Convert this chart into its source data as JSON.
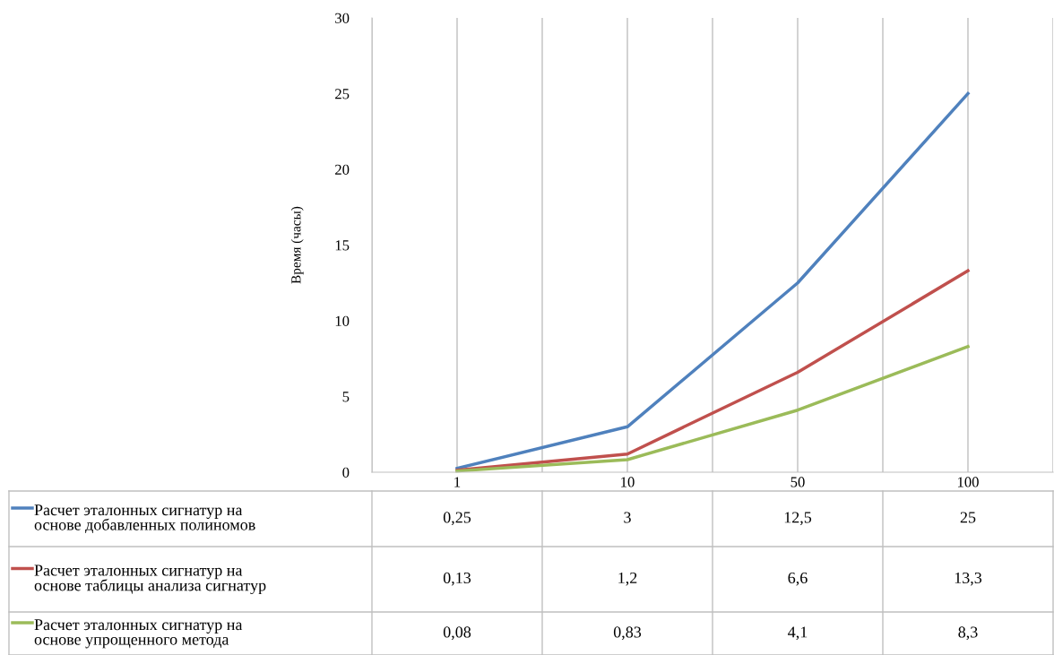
{
  "chart_data": {
    "type": "line",
    "ylabel": "Время (часы)",
    "categories": [
      "1",
      "10",
      "50",
      "100"
    ],
    "series": [
      {
        "name": "Расчет эталонных сигнатур на основе добавленных полиномов",
        "color": "#4f81bd",
        "values": [
          0.25,
          3,
          12.5,
          25
        ],
        "value_labels": [
          "0,25",
          "3",
          "12,5",
          "25"
        ]
      },
      {
        "name": "Расчет эталонных сигнатур на основе таблицы анализа сигнатур",
        "color": "#c0504d",
        "values": [
          0.13,
          1.2,
          6.6,
          13.3
        ],
        "value_labels": [
          "0,13",
          "1,2",
          "6,6",
          "13,3"
        ]
      },
      {
        "name": "Расчет эталонных сигнатур на основе упрощенного метода",
        "color": "#9bbb59",
        "values": [
          0.08,
          0.83,
          4.1,
          8.3
        ],
        "value_labels": [
          "0,08",
          "0,83",
          "4,1",
          "8,3"
        ]
      }
    ],
    "ylim": [
      0,
      30
    ],
    "yticks": [
      0,
      5,
      10,
      15,
      20,
      25,
      30
    ],
    "grid": "x",
    "legend": "bottom",
    "marker": "none",
    "line_style": "solid"
  }
}
